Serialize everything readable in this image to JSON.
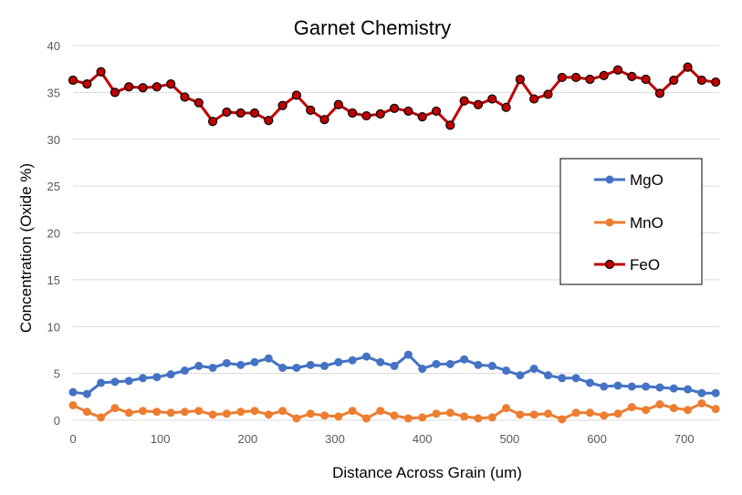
{
  "chart_data": {
    "type": "line",
    "title": "Garnet Chemistry",
    "xlabel": "Distance Across Grain (um)",
    "ylabel": "Concentration (Oxide %)",
    "xlim": [
      0,
      740
    ],
    "ylim": [
      0,
      40
    ],
    "xticks": [
      "0",
      "100",
      "200",
      "300",
      "400",
      "500",
      "600",
      "700"
    ],
    "yticks": [
      "0",
      "5",
      "10",
      "15",
      "20",
      "25",
      "30",
      "35",
      "40"
    ],
    "grid": "horizontal",
    "legend_position": "right",
    "x": [
      0,
      16,
      32,
      48,
      64,
      80,
      96,
      112,
      128,
      144,
      160,
      176,
      192,
      208,
      224,
      240,
      256,
      272,
      288,
      304,
      320,
      336,
      352,
      368,
      384,
      400,
      416,
      432,
      448,
      464,
      480,
      496,
      512,
      528,
      544,
      560,
      576,
      592,
      608,
      624,
      640,
      656,
      672,
      688,
      704,
      720,
      736
    ],
    "series": [
      {
        "name": "MgO",
        "color": "#4472C4",
        "values": [
          3.0,
          2.8,
          4.0,
          4.1,
          4.2,
          4.5,
          4.6,
          4.9,
          5.3,
          5.8,
          5.6,
          6.1,
          5.9,
          6.2,
          6.6,
          5.6,
          5.6,
          5.9,
          5.8,
          6.2,
          6.4,
          6.8,
          6.2,
          5.8,
          7.0,
          5.5,
          6.0,
          6.0,
          6.5,
          5.9,
          5.8,
          5.3,
          4.8,
          5.5,
          4.8,
          4.5,
          4.5,
          4.0,
          3.6,
          3.7,
          3.6,
          3.6,
          3.5,
          3.4,
          3.3,
          2.9,
          2.9
        ]
      },
      {
        "name": "MnO",
        "color": "#ED7D31",
        "values": [
          1.6,
          0.9,
          0.3,
          1.3,
          0.8,
          1.0,
          0.9,
          0.8,
          0.9,
          1.0,
          0.6,
          0.7,
          0.9,
          1.0,
          0.6,
          1.0,
          0.2,
          0.7,
          0.5,
          0.4,
          1.0,
          0.2,
          1.0,
          0.5,
          0.2,
          0.3,
          0.7,
          0.8,
          0.4,
          0.2,
          0.3,
          1.3,
          0.6,
          0.6,
          0.7,
          0.1,
          0.8,
          0.8,
          0.5,
          0.7,
          1.4,
          1.1,
          1.7,
          1.3,
          1.1,
          1.8,
          1.2
        ]
      },
      {
        "name": "FeO",
        "color": "#C00000",
        "values": [
          36.3,
          35.9,
          37.2,
          35.0,
          35.6,
          35.5,
          35.6,
          35.9,
          34.5,
          33.9,
          31.9,
          32.9,
          32.8,
          32.8,
          32.0,
          33.6,
          34.7,
          33.1,
          32.1,
          33.7,
          32.8,
          32.5,
          32.7,
          33.3,
          33.0,
          32.4,
          33.0,
          31.5,
          34.1,
          33.7,
          34.3,
          33.4,
          36.4,
          34.3,
          34.8,
          36.6,
          36.6,
          36.4,
          36.8,
          37.4,
          36.7,
          36.4,
          34.9,
          36.3,
          37.7,
          36.3,
          36.1
        ]
      }
    ]
  }
}
